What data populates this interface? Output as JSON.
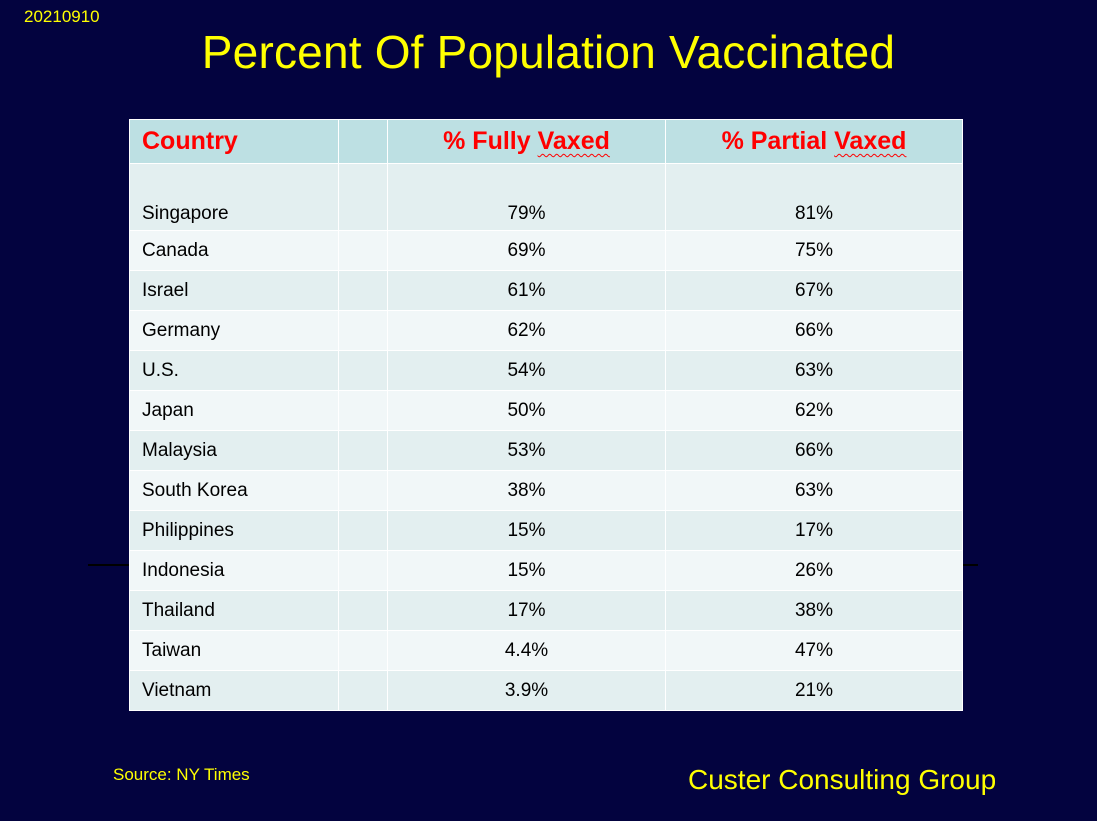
{
  "date": "20210910",
  "title": "Percent Of Population Vaccinated",
  "table": {
    "headers": {
      "country": "Country",
      "fully_prefix": "% Fully ",
      "fully_word": "Vaxed",
      "partial_prefix": "% Partial ",
      "partial_word": "Vaxed"
    },
    "rows": [
      {
        "country": "Singapore",
        "fully": "79%",
        "partial": "81%"
      },
      {
        "country": "Canada",
        "fully": "69%",
        "partial": "75%"
      },
      {
        "country": "Israel",
        "fully": "61%",
        "partial": "67%"
      },
      {
        "country": "Germany",
        "fully": "62%",
        "partial": "66%"
      },
      {
        "country": "U.S.",
        "fully": "54%",
        "partial": "63%"
      },
      {
        "country": "Japan",
        "fully": "50%",
        "partial": "62%"
      },
      {
        "country": "Malaysia",
        "fully": "53%",
        "partial": "66%"
      },
      {
        "country": "South Korea",
        "fully": "38%",
        "partial": "63%"
      },
      {
        "country": "Philippines",
        "fully": "15%",
        "partial": "17%"
      },
      {
        "country": "Indonesia",
        "fully": "15%",
        "partial": "26%"
      },
      {
        "country": "Thailand",
        "fully": "17%",
        "partial": "38%"
      },
      {
        "country": "Taiwan",
        "fully": "4.4%",
        "partial": "47%"
      },
      {
        "country": "Vietnam",
        "fully": "3.9%",
        "partial": "21%"
      }
    ]
  },
  "source": "Source: NY Times",
  "brand": "Custer Consulting Group",
  "colors": {
    "background": "#03033f",
    "title": "#ffff00",
    "header_text": "#ff0000",
    "header_bg": "#bde0e3",
    "row_bg_a": "#e3eff0",
    "row_bg_b": "#f1f7f8"
  }
}
